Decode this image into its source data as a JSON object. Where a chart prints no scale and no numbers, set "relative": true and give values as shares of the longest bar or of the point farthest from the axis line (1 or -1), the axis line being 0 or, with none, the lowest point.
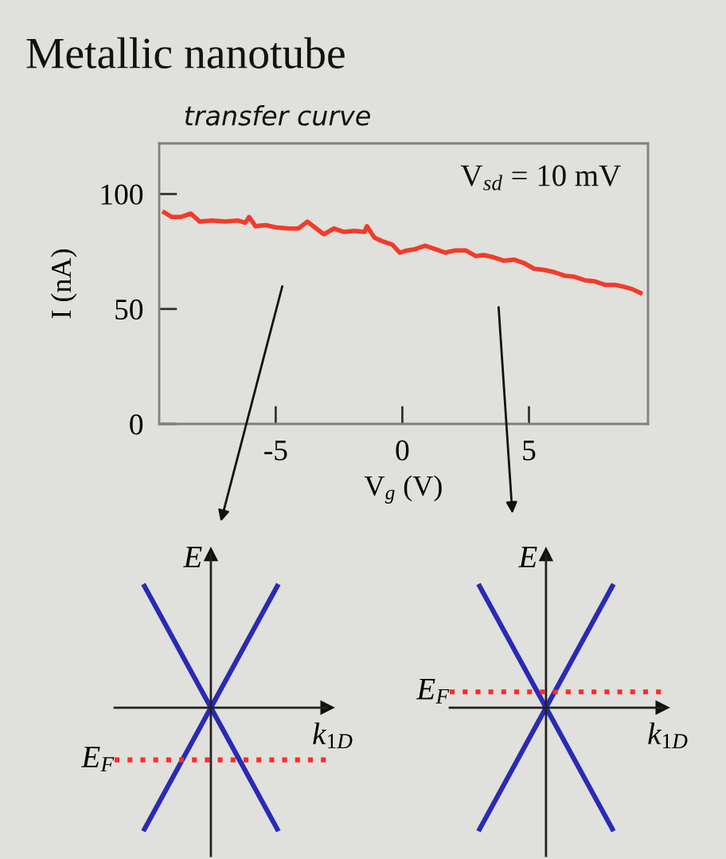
{
  "chart_data": [
    {
      "type": "line",
      "title": "Metallic nanotube",
      "subtitle": "transfer curve",
      "xlabel": "V$_{g}$ (V)",
      "ylabel": "I (nA)",
      "x": [
        -9.4,
        -9.1,
        -8.75,
        -8.35,
        -8.0,
        -7.5,
        -7.0,
        -6.5,
        -6.2,
        -6.05,
        -5.8,
        -5.4,
        -5.0,
        -4.5,
        -4.1,
        -3.75,
        -3.4,
        -3.1,
        -2.7,
        -2.3,
        -1.9,
        -1.5,
        -1.4,
        -1.1,
        -0.8,
        -0.4,
        -0.1,
        0.2,
        0.5,
        0.9,
        1.3,
        1.7,
        2.1,
        2.5,
        2.9,
        3.2,
        3.6,
        4.0,
        4.4,
        4.8,
        5.2,
        5.6,
        6.0,
        6.4,
        6.8,
        7.2,
        7.6,
        8.0,
        8.4,
        8.8,
        9.1,
        9.4
      ],
      "series": [
        {
          "color": "#f23b2b",
          "values": [
            92,
            90,
            90,
            91.5,
            88,
            88.5,
            88,
            88.5,
            87.5,
            90,
            86,
            86.5,
            85.5,
            85,
            85,
            88,
            85,
            82.5,
            85,
            83.5,
            84,
            83.5,
            86,
            81,
            79.5,
            78,
            74.5,
            75.5,
            76,
            77.5,
            76,
            74.5,
            75.5,
            75.5,
            73,
            73.5,
            72.5,
            71,
            71.5,
            70,
            67.5,
            67,
            66,
            64.5,
            64,
            62.5,
            62,
            60.5,
            60.5,
            59.5,
            58.5,
            57
          ]
        }
      ],
      "xlim": [
        -9.6,
        9.7
      ],
      "ylim": [
        0,
        122
      ],
      "xticks": [
        -5,
        0,
        5
      ],
      "yticks": [
        0,
        50,
        100
      ],
      "annotations": [
        "V$_{sd}$ = 10 mV"
      ]
    },
    {
      "type": "line",
      "relative": true,
      "xlabel": "k$_{1D}$",
      "ylabel": "E",
      "categories": [
        null,
        null,
        null
      ],
      "series": [
        {
          "color": "#2a2ab4",
          "values": [
            -1,
            0,
            1
          ]
        },
        {
          "color": "#2a2ab4",
          "values": [
            1,
            0,
            -1
          ]
        }
      ],
      "ref_lines": [
        {
          "axis": "y",
          "value": -0.43,
          "label": "E$_{F}$",
          "color": "#ff2a2a",
          "line_style": "dotted"
        }
      ]
    },
    {
      "type": "line",
      "relative": true,
      "xlabel": "k$_{1D}$",
      "ylabel": "E",
      "categories": [
        null,
        null,
        null
      ],
      "series": [
        {
          "color": "#2a2ab4",
          "values": [
            -1,
            0,
            1
          ]
        },
        {
          "color": "#2a2ab4",
          "values": [
            1,
            0,
            -1
          ]
        }
      ],
      "ref_lines": [
        {
          "axis": "y",
          "value": 0.13,
          "label": "E$_{F}$",
          "color": "#ff2a2a",
          "line_style": "dotted"
        }
      ]
    }
  ]
}
